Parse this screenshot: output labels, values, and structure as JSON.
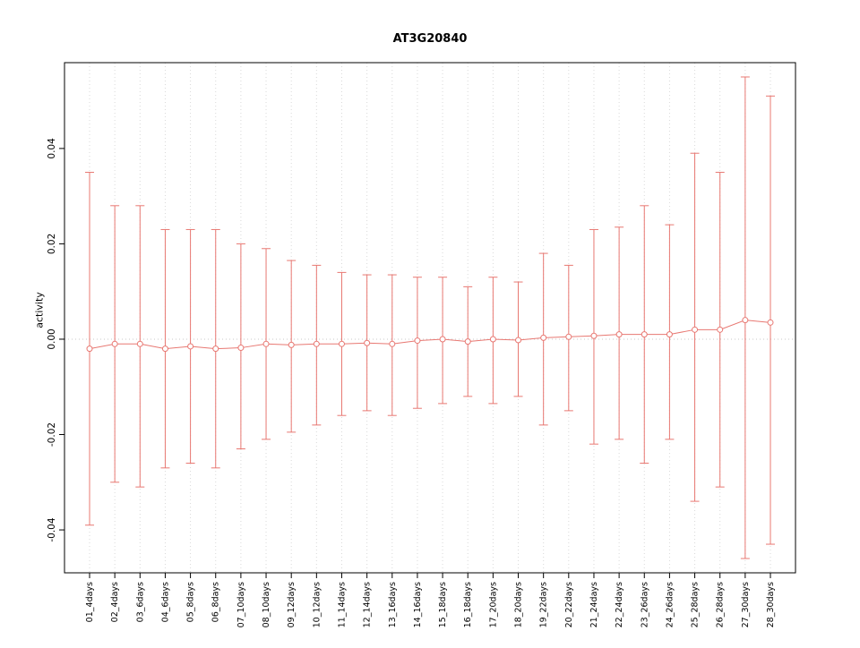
{
  "chart_data": {
    "type": "line",
    "subtype": "means-with-error-bars",
    "title": "AT3G20840",
    "xlabel": "",
    "ylabel": "activity",
    "ylim": [
      -0.049,
      0.058
    ],
    "yticks": {
      "values": [
        -0.04,
        -0.02,
        0,
        0.02,
        0.04
      ],
      "labels": [
        "-0.04",
        "-0.02",
        "0.00",
        "0.02",
        "0.04"
      ]
    },
    "grid": {
      "vertical_dotted": true,
      "zero_line_dotted": true,
      "grid_color": "#d9d9d9",
      "zero_line_color": "#c8c8c8"
    },
    "legend_position": "none",
    "series_color": "#e87872",
    "categories": [
      "01_4days",
      "02_4days",
      "03_6days",
      "04_6days",
      "05_8days",
      "06_8days",
      "07_10days",
      "08_10days",
      "09_12days",
      "10_12days",
      "11_14days",
      "12_14days",
      "13_16days",
      "14_16days",
      "15_18days",
      "16_18days",
      "17_20days",
      "18_20days",
      "19_22days",
      "20_22days",
      "21_24days",
      "22_24days",
      "23_26days",
      "24_26days",
      "25_28days",
      "26_28days",
      "27_30days",
      "28_30days"
    ],
    "series": [
      {
        "name": "activity",
        "means": [
          -0.002,
          -0.001,
          -0.001,
          -0.002,
          -0.0015,
          -0.002,
          -0.0018,
          -0.001,
          -0.0012,
          -0.001,
          -0.001,
          -0.0008,
          -0.001,
          -0.0003,
          0.0,
          -0.0005,
          0.0,
          -0.0002,
          0.0003,
          0.0005,
          0.0007,
          0.001,
          0.001,
          0.001,
          0.002,
          0.002,
          0.004,
          0.0035
        ],
        "upper": [
          0.035,
          0.028,
          0.028,
          0.023,
          0.023,
          0.023,
          0.02,
          0.019,
          0.0165,
          0.0155,
          0.014,
          0.0135,
          0.0135,
          0.013,
          0.013,
          0.011,
          0.013,
          0.012,
          0.018,
          0.0155,
          0.023,
          0.0235,
          0.028,
          0.024,
          0.039,
          0.035,
          0.055,
          0.051
        ],
        "lower": [
          -0.039,
          -0.03,
          -0.031,
          -0.027,
          -0.026,
          -0.027,
          -0.023,
          -0.021,
          -0.0195,
          -0.018,
          -0.016,
          -0.015,
          -0.016,
          -0.0145,
          -0.0135,
          -0.012,
          -0.0135,
          -0.012,
          -0.018,
          -0.015,
          -0.022,
          -0.021,
          -0.026,
          -0.021,
          -0.034,
          -0.031,
          -0.046,
          -0.043
        ]
      }
    ]
  }
}
